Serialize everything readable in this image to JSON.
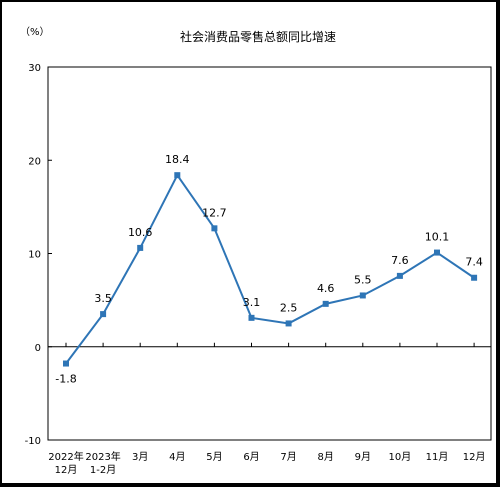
{
  "chart_data": {
    "type": "line",
    "title": "社会消费品零售总额同比增速",
    "unit": "（%）",
    "categories": [
      [
        "2022年",
        "12月"
      ],
      [
        "2023年",
        "1-2月"
      ],
      [
        "3月"
      ],
      [
        "4月"
      ],
      [
        "5月"
      ],
      [
        "6月"
      ],
      [
        "7月"
      ],
      [
        "8月"
      ],
      [
        "9月"
      ],
      [
        "10月"
      ],
      [
        "11月"
      ],
      [
        "12月"
      ]
    ],
    "series": [
      {
        "values": [
          -1.8,
          3.5,
          10.6,
          18.4,
          12.7,
          3.1,
          2.5,
          4.6,
          5.5,
          7.6,
          10.1,
          7.4
        ]
      }
    ],
    "data_labels": [
      "-1.8",
      "3.5",
      "10.6",
      "18.4",
      "12.7",
      "3.1",
      "2.5",
      "4.6",
      "5.5",
      "7.6",
      "10.1",
      "7.4"
    ],
    "y_ticks": [
      "30",
      "20",
      "10",
      "0",
      "-10"
    ],
    "ylim": [
      -10,
      30
    ],
    "grid": false,
    "legend": "none",
    "line_color": "#2e75b6",
    "marker_color": "#2e75b6"
  }
}
